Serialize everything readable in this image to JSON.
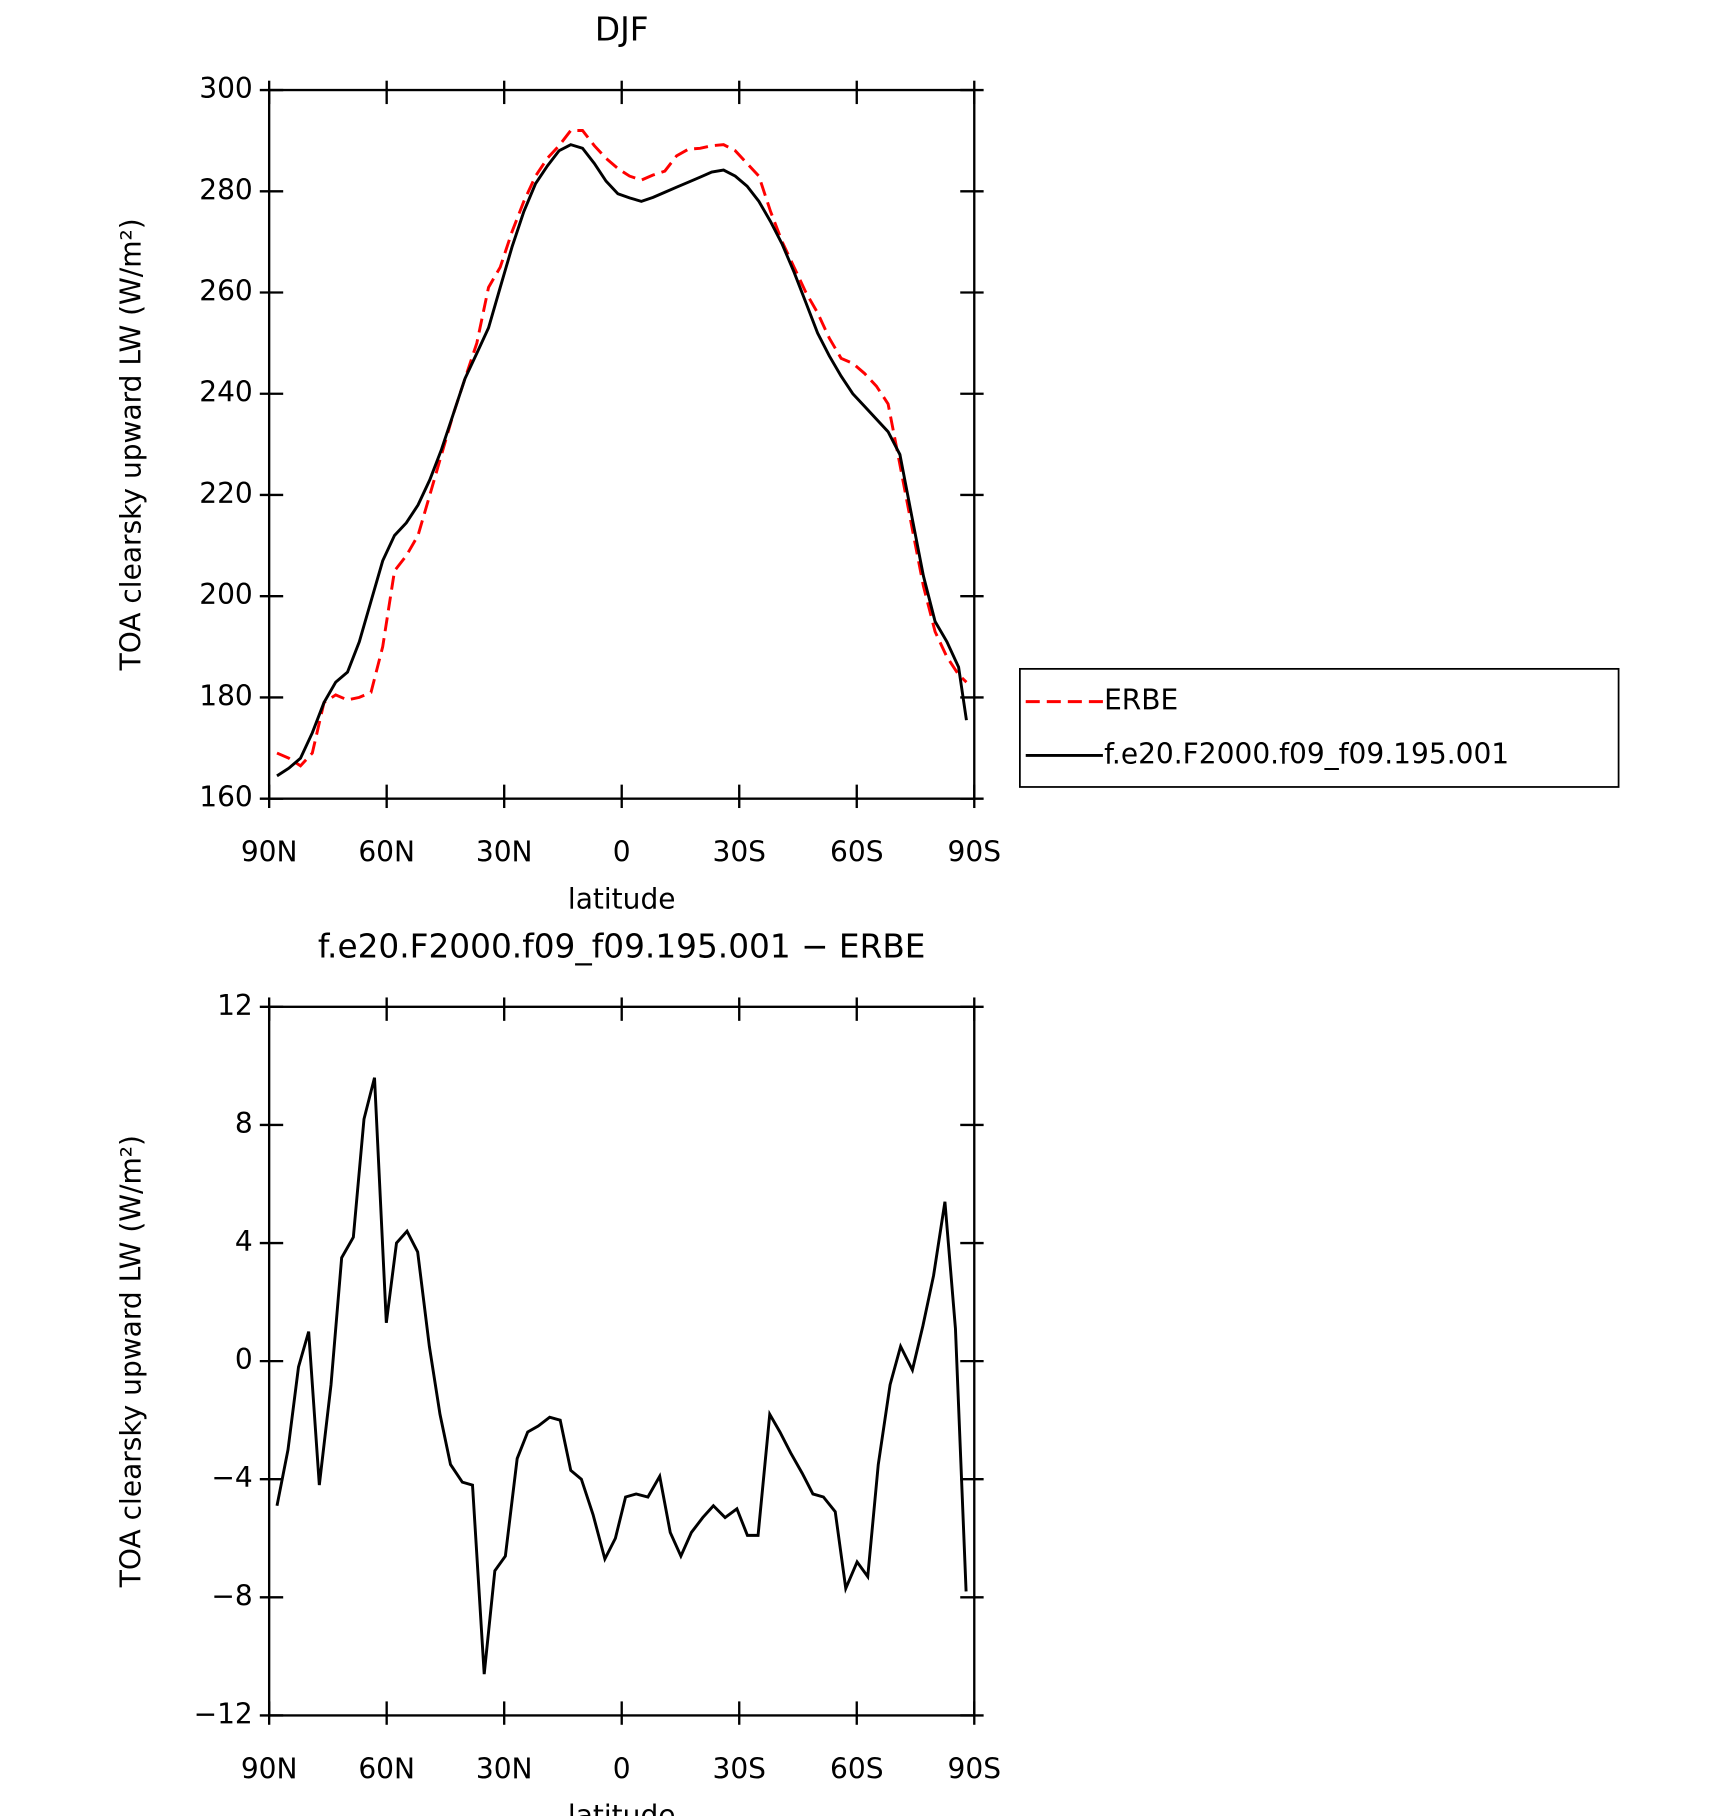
{
  "chart_data": [
    {
      "type": "line",
      "title": "DJF",
      "xlabel": "latitude",
      "ylabel": "TOA clearsky upward LW (W/m²)",
      "x": [
        88,
        85,
        82,
        79,
        76,
        73,
        70,
        67,
        64,
        61,
        58,
        55,
        52,
        49,
        46,
        43,
        40,
        37,
        34,
        31,
        28,
        25,
        22,
        19,
        16,
        13,
        10,
        7,
        4,
        1,
        -2,
        -5,
        -8,
        -11,
        -14,
        -17,
        -20,
        -23,
        -26,
        -29,
        -32,
        -35,
        -38,
        -41,
        -44,
        -47,
        -50,
        -53,
        -56,
        -59,
        -62,
        -65,
        -68,
        -71,
        -74,
        -77,
        -80,
        -83,
        -86,
        -88
      ],
      "series": [
        {
          "name": "ERBE",
          "color": "#ff0000",
          "line_style": "dashed",
          "values": [
            169,
            168,
            166.5,
            169,
            179,
            180.5,
            179.5,
            180,
            181,
            190,
            205,
            208,
            212,
            220,
            228,
            236,
            243,
            250,
            261,
            265,
            272,
            278,
            283,
            286.5,
            289,
            292,
            292,
            289,
            286.5,
            284.5,
            283,
            282.2,
            283.2,
            284,
            287,
            288.3,
            288.5,
            289,
            289.2,
            288,
            285.5,
            283,
            276,
            270,
            265,
            260,
            256,
            251,
            247,
            246,
            244,
            241.5,
            238,
            226,
            214,
            202,
            193,
            188,
            184.5,
            183
          ]
        },
        {
          "name": "f.e20.F2000.f09_f09.195.001",
          "color": "#000000",
          "line_style": "solid",
          "values": [
            164.5,
            166,
            168,
            173,
            179,
            183,
            185,
            191,
            199,
            207,
            212,
            214.5,
            218,
            223,
            229,
            236,
            243,
            248,
            253,
            261,
            269,
            276,
            281.5,
            285,
            288,
            289.2,
            288.5,
            285.5,
            282,
            279.5,
            278.7,
            278,
            278.8,
            279.8,
            280.8,
            281.8,
            282.8,
            283.8,
            284.2,
            283,
            281,
            278,
            274,
            269.5,
            264,
            258,
            252,
            247.5,
            243.5,
            240,
            237.5,
            235,
            232.5,
            228,
            216,
            204,
            195,
            191,
            186,
            175.5
          ]
        }
      ],
      "xlim": [
        90,
        -90
      ],
      "xticks": [
        {
          "value": 90,
          "label": "90N"
        },
        {
          "value": 60,
          "label": "60N"
        },
        {
          "value": 30,
          "label": "30N"
        },
        0,
        {
          "value": -30,
          "label": "30S"
        },
        {
          "value": -60,
          "label": "60S"
        },
        {
          "value": -90,
          "label": "90S"
        }
      ],
      "ylim": [
        160,
        300
      ],
      "yticks": [
        160,
        180,
        200,
        220,
        240,
        260,
        280,
        300
      ],
      "legend": "right"
    },
    {
      "type": "line",
      "title": "f.e20.F2000.f09_f09.195.001 − ERBE",
      "xlabel": "latitude",
      "ylabel": "TOA clearsky upward LW (W/m²)",
      "x": [
        88,
        85.2,
        82.5,
        79.9,
        77.2,
        74.2,
        71.5,
        68.5,
        65.8,
        63.1,
        60.1,
        57.5,
        54.8,
        52.1,
        49.1,
        46.4,
        43.7,
        40.7,
        38.1,
        35.1,
        32.4,
        29.7,
        26.7,
        24,
        21.3,
        18.4,
        15.7,
        13,
        10.3,
        7.3,
        4.3,
        1.6,
        -1,
        -3.7,
        -6.7,
        -9.7,
        -12.4,
        -15.1,
        -17.8,
        -20.7,
        -23.4,
        -26.4,
        -29.4,
        -32.1,
        -34.8,
        -37.8,
        -40.4,
        -43.1,
        -46.1,
        -48.8,
        -51.5,
        -54.5,
        -57.2,
        -60.1,
        -62.8,
        -65.5,
        -68.5,
        -71.2,
        -74.2,
        -76.9,
        -79.6,
        -82.5,
        -85.2,
        -87.9
      ],
      "values": [
        -4.9,
        -3,
        -0.2,
        1,
        -4.2,
        -0.8,
        3.5,
        4.2,
        8.2,
        9.6,
        1.3,
        4,
        4.4,
        3.7,
        0.5,
        -1.8,
        -3.5,
        -4.1,
        -4.2,
        -10.6,
        -7.1,
        -6.6,
        -3.3,
        -2.4,
        -2.2,
        -1.9,
        -2,
        -3.7,
        -4,
        -5.2,
        -6.7,
        -6,
        -4.6,
        -4.5,
        -4.6,
        -3.9,
        -5.8,
        -6.6,
        -5.8,
        -5.3,
        -4.9,
        -5.3,
        -5,
        -5.9,
        -5.9,
        -1.8,
        -2.4,
        -3.1,
        -3.8,
        -4.5,
        -4.6,
        -5.1,
        -7.7,
        -6.8,
        -7.3,
        -3.5,
        -0.8,
        0.5,
        -0.3,
        1.2,
        2.9,
        5.4,
        1.1,
        -7.8
      ],
      "color": "#000000",
      "xlim": [
        90,
        -90
      ],
      "xticks": [
        {
          "value": 90,
          "label": "90N"
        },
        {
          "value": 60,
          "label": "60N"
        },
        {
          "value": 30,
          "label": "30N"
        },
        0,
        {
          "value": -30,
          "label": "30S"
        },
        {
          "value": -60,
          "label": "60S"
        },
        {
          "value": -90,
          "label": "90S"
        }
      ],
      "ylim": [
        -12,
        12
      ],
      "yticks": [
        {
          "value": -12,
          "label": "−12"
        },
        {
          "value": -8,
          "label": "−8"
        },
        {
          "value": -4,
          "label": "−4"
        },
        0,
        4,
        8,
        12
      ]
    }
  ]
}
